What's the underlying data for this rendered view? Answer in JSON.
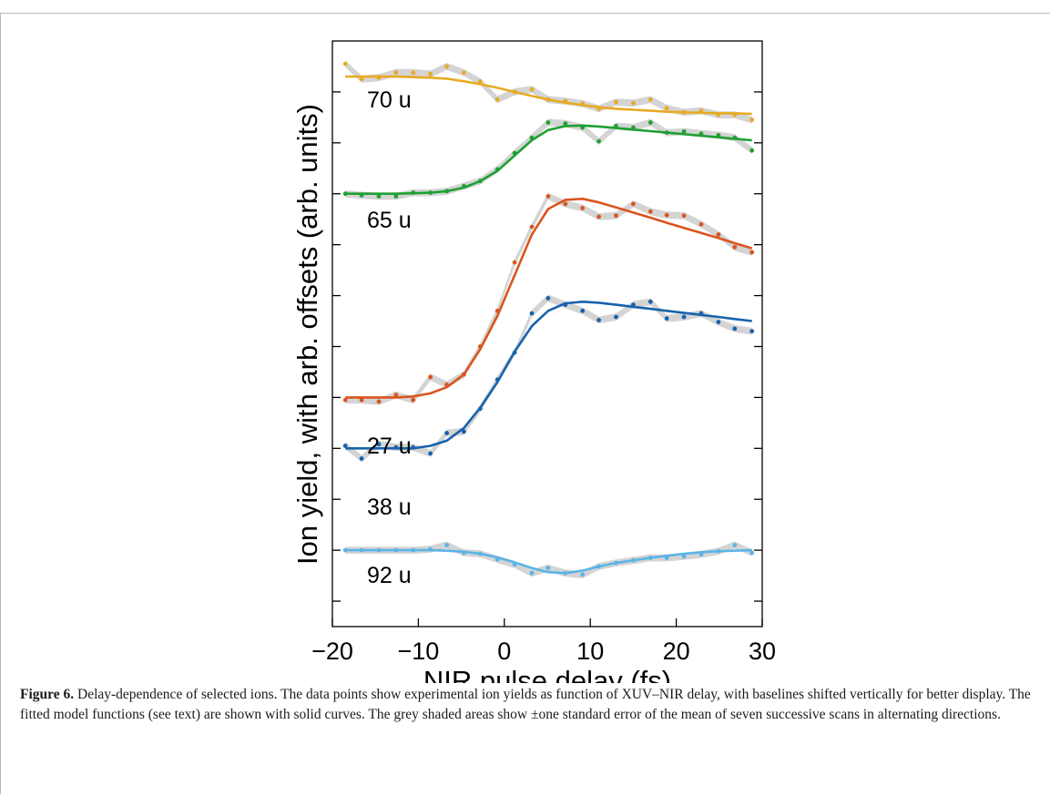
{
  "chart_data": {
    "type": "line",
    "title": "",
    "xlabel": "NIR pulse delay (fs)",
    "ylabel": "Ion yield, with arb. offsets (arb. units)",
    "xlim": [
      -20,
      30
    ],
    "ylim": [
      0,
      10.5
    ],
    "xticks": [
      -20,
      -10,
      0,
      10,
      20,
      30
    ],
    "x_tick_labels": [
      "−20",
      "−10",
      "0",
      "10",
      "20",
      "30"
    ],
    "y_tick_labels_shown": false,
    "grid": false,
    "legend": "none",
    "x": [
      -18.5,
      -16.6,
      -14.6,
      -12.6,
      -10.6,
      -8.6,
      -6.7,
      -4.7,
      -2.8,
      -0.8,
      1.2,
      3.2,
      5.1,
      7.1,
      9.1,
      11.0,
      13.0,
      15.0,
      17.0,
      18.9,
      20.9,
      22.9,
      24.9,
      26.8,
      28.8
    ],
    "series": [
      {
        "name": "70 u",
        "color": "#e8aa22",
        "values": [
          10.55,
          10.25,
          10.28,
          10.38,
          10.38,
          10.35,
          10.5,
          10.38,
          10.2,
          9.85,
          10.0,
          10.05,
          9.85,
          9.82,
          9.77,
          9.67,
          9.8,
          9.78,
          9.85,
          9.68,
          9.6,
          9.63,
          9.55,
          9.55,
          9.45
        ],
        "fit": [
          10.3,
          10.3,
          10.3,
          10.3,
          10.29,
          10.28,
          10.26,
          10.21,
          10.15,
          10.08,
          10.0,
          9.92,
          9.85,
          9.79,
          9.74,
          9.7,
          9.67,
          9.65,
          9.63,
          9.61,
          9.6,
          9.59,
          9.58,
          9.58,
          9.57
        ]
      },
      {
        "name": "65 u",
        "color": "#1fa032",
        "values": [
          8.0,
          7.97,
          7.95,
          7.95,
          8.02,
          8.02,
          8.05,
          8.15,
          8.25,
          8.48,
          8.8,
          9.1,
          9.4,
          9.38,
          9.3,
          9.03,
          9.33,
          9.3,
          9.4,
          9.2,
          9.22,
          9.18,
          9.15,
          9.1,
          8.85
        ],
        "fit": [
          8.0,
          8.0,
          8.0,
          8.0,
          8.01,
          8.02,
          8.05,
          8.12,
          8.25,
          8.45,
          8.75,
          9.05,
          9.25,
          9.33,
          9.34,
          9.32,
          9.29,
          9.26,
          9.23,
          9.2,
          9.17,
          9.14,
          9.11,
          9.08,
          9.05
        ]
      },
      {
        "name": "27 u",
        "color": "#d95520",
        "values": [
          3.95,
          3.95,
          3.92,
          4.05,
          3.95,
          4.4,
          4.25,
          4.45,
          5.0,
          5.7,
          6.65,
          7.35,
          7.95,
          7.8,
          7.72,
          7.55,
          7.57,
          7.8,
          7.65,
          7.58,
          7.57,
          7.4,
          7.2,
          6.95,
          6.85
        ],
        "fit": [
          4.0,
          4.0,
          4.0,
          4.0,
          4.02,
          4.08,
          4.2,
          4.45,
          4.95,
          5.6,
          6.4,
          7.2,
          7.7,
          7.88,
          7.9,
          7.83,
          7.73,
          7.63,
          7.53,
          7.43,
          7.33,
          7.23,
          7.13,
          7.03,
          6.93
        ]
      },
      {
        "name": "38 u",
        "color": "#1763ab",
        "values": [
          3.05,
          2.8,
          3.08,
          3.02,
          3.02,
          2.9,
          3.3,
          3.33,
          3.78,
          4.35,
          4.88,
          5.65,
          5.95,
          5.82,
          5.7,
          5.52,
          5.58,
          5.82,
          5.88,
          5.55,
          5.58,
          5.65,
          5.48,
          5.35,
          5.3
        ],
        "fit": [
          3.0,
          3.0,
          3.0,
          3.0,
          3.0,
          3.05,
          3.15,
          3.4,
          3.8,
          4.3,
          4.9,
          5.4,
          5.7,
          5.85,
          5.88,
          5.86,
          5.82,
          5.78,
          5.74,
          5.7,
          5.66,
          5.62,
          5.58,
          5.54,
          5.5
        ]
      },
      {
        "name": "92 u",
        "color": "#5ab4e6",
        "values": [
          1.0,
          1.0,
          1.0,
          1.0,
          1.0,
          1.02,
          1.1,
          0.95,
          0.93,
          0.82,
          0.72,
          0.55,
          0.65,
          0.55,
          0.52,
          0.68,
          0.75,
          0.8,
          0.85,
          0.85,
          0.88,
          0.92,
          0.98,
          1.1,
          0.95
        ],
        "fit": [
          1.0,
          1.0,
          1.0,
          1.0,
          1.0,
          1.0,
          0.99,
          0.97,
          0.93,
          0.86,
          0.76,
          0.65,
          0.57,
          0.55,
          0.6,
          0.68,
          0.75,
          0.8,
          0.85,
          0.89,
          0.93,
          0.96,
          0.98,
          0.99,
          1.0
        ]
      }
    ]
  },
  "caption": {
    "label": "Figure 6.",
    "text": " Delay-dependence of selected ions. The data points show experimental ion yields as function of XUV–NIR delay, with baselines shifted vertically for better display. The fitted model functions (see text) are shown with solid curves. The grey shaded areas show ±one standard error of the mean of seven successive scans in alternating directions."
  }
}
